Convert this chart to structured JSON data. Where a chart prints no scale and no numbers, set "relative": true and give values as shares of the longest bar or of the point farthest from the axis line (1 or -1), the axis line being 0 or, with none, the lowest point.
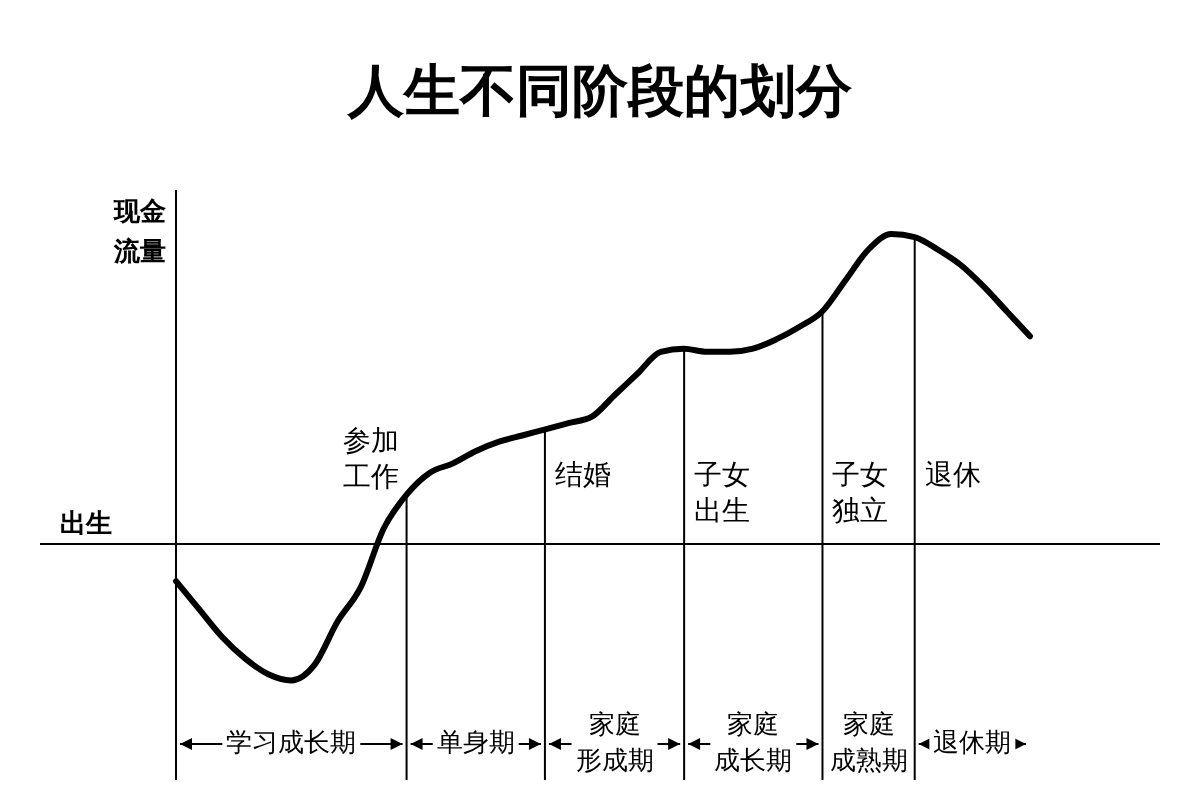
{
  "chart_data": {
    "type": "line",
    "relative": true,
    "title": "人生不同阶段的划分",
    "ylabel": "现金流量",
    "xlabel": "出生",
    "categories": [
      null,
      null,
      null,
      null,
      null,
      null,
      null,
      null,
      null,
      null,
      null,
      null,
      null,
      null,
      null,
      null,
      null,
      null,
      null,
      null,
      null,
      null,
      null,
      null,
      null,
      null,
      null,
      null,
      null,
      null,
      null,
      null,
      null,
      null,
      null,
      null,
      null,
      null
    ],
    "series": [
      {
        "color": "#000000",
        "values": [
          -0.12,
          -0.21,
          -0.3,
          -0.37,
          -0.42,
          -0.44,
          -0.39,
          -0.25,
          -0.14,
          0.05,
          0.16,
          0.23,
          0.26,
          0.3,
          0.33,
          0.35,
          0.37,
          0.39,
          0.41,
          0.48,
          0.55,
          0.62,
          0.63,
          0.62,
          0.62,
          0.63,
          0.66,
          0.7,
          0.75,
          0.85,
          0.95,
          1.0,
          0.99,
          0.95,
          0.9,
          0.83,
          0.75,
          0.67
        ]
      }
    ],
    "grid": "x",
    "annotations": [
      "参加工作",
      "结婚",
      "子女出生",
      "子女独立",
      "退休",
      "学习成长期",
      "单身期",
      "家庭形成期",
      "家庭成长期",
      "家庭成熟期",
      "退休期"
    ]
  }
}
